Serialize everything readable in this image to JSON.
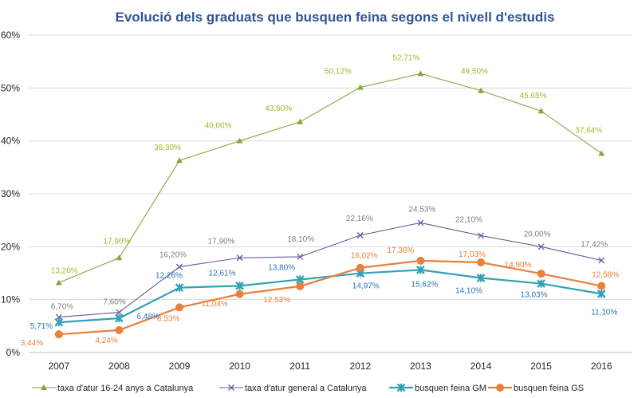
{
  "chart_data": {
    "type": "line",
    "title": "Evolució dels graduats que busquen feina segons el nivell d'estudis",
    "xlabel": "",
    "ylabel": "",
    "categories": [
      "2007",
      "2008",
      "2009",
      "2010",
      "2011",
      "2012",
      "2013",
      "2014",
      "2015",
      "2016"
    ],
    "ylim": [
      0,
      60
    ],
    "yticks": [
      0,
      10,
      20,
      30,
      40,
      50,
      60
    ],
    "ytick_labels": [
      "0%",
      "10%",
      "20%",
      "30%",
      "40%",
      "50%",
      "60%"
    ],
    "grid": true,
    "legend_position": "bottom",
    "series": [
      {
        "name": "taxa d'atur 16-24 anys a Catalunya",
        "color": "#86a63e",
        "label_color": "#9bbb2a",
        "marker": "triangle",
        "values": [
          13.2,
          17.9,
          36.3,
          40.0,
          43.6,
          50.12,
          52.71,
          49.5,
          45.65,
          37.64
        ],
        "labels": [
          "13,20%",
          "17,90%",
          "36,30%",
          "40,00%",
          "43,60%",
          "50,12%",
          "52,71%",
          "49,50%",
          "45,65%",
          "37,64%"
        ]
      },
      {
        "name": "taxa d'atur general a Catalunya",
        "color": "#6a5aa0",
        "label_color": "#7f7f7f",
        "marker": "x",
        "values": [
          6.7,
          7.6,
          16.2,
          17.9,
          18.1,
          22.16,
          24.53,
          22.1,
          20.0,
          17.42
        ],
        "labels": [
          "6,70%",
          "7,60%",
          "16,20%",
          "17,90%",
          "18,10%",
          "22,16%",
          "24,53%",
          "22,10%",
          "20,00%",
          "17,42%"
        ]
      },
      {
        "name": "busquen feina GM",
        "color": "#31a2b8",
        "label_color": "#2e75b6",
        "marker": "star",
        "values": [
          5.71,
          6.48,
          12.26,
          12.61,
          13.8,
          14.97,
          15.62,
          14.1,
          13.03,
          11.1
        ],
        "labels": [
          "5,71%",
          "6,48%",
          "12,26%",
          "12,61%",
          "13,80%",
          "14,97%",
          "15,62%",
          "14,10%",
          "13,03%",
          "11,10%"
        ]
      },
      {
        "name": "busquen feina GS",
        "color": "#e8813a",
        "label_color": "#e8813a",
        "marker": "circle",
        "values": [
          3.44,
          4.24,
          8.53,
          11.04,
          12.53,
          16.02,
          17.36,
          17.03,
          14.9,
          12.58
        ],
        "labels": [
          "3,44%",
          "4,24%",
          "8,53%",
          "11,04%",
          "12,53%",
          "16,02%",
          "17,36%",
          "17,03%",
          "14,90%",
          "12,58%"
        ]
      }
    ]
  }
}
